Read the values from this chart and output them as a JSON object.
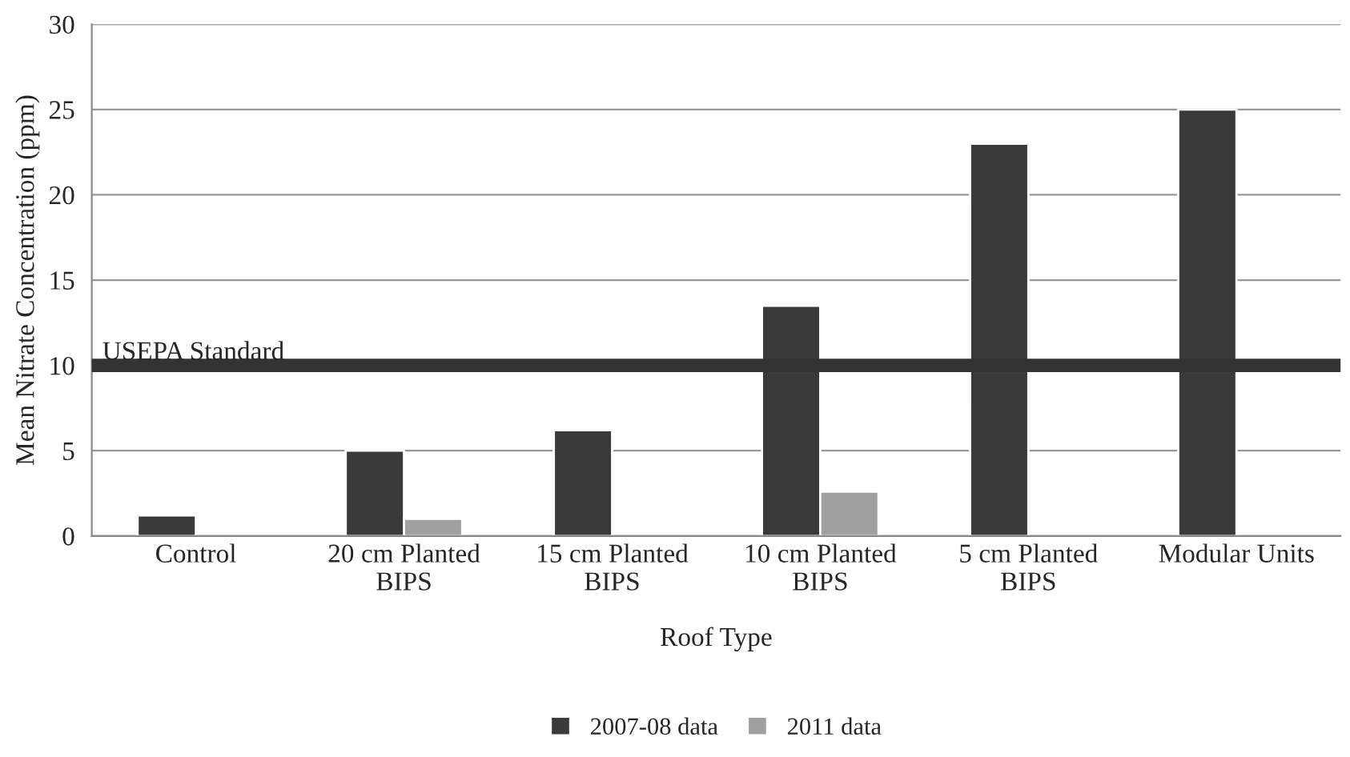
{
  "chart_data": {
    "type": "bar",
    "xlabel": "Roof Type",
    "ylabel": "Mean Nitrate Concentration (ppm)",
    "categories": [
      "Control",
      "20 cm Planted\nBIPS",
      "15 cm Planted\nBIPS",
      "10 cm Planted\nBIPS",
      "5 cm Planted\nBIPS",
      "Modular Units"
    ],
    "series": [
      {
        "name": "2007-08 data",
        "color": "#3a3a3a",
        "values": [
          1.2,
          5.0,
          6.2,
          13.5,
          23.0,
          25.0
        ]
      },
      {
        "name": "2011 data",
        "color": "#a0a0a0",
        "values": [
          null,
          1.0,
          null,
          2.6,
          null,
          null
        ]
      }
    ],
    "ylim": [
      0,
      30
    ],
    "yticks": [
      0,
      5,
      10,
      15,
      20,
      25,
      30
    ],
    "grid": "y",
    "legend": "bottom",
    "ref_lines": [
      {
        "axis": "y",
        "value": 10,
        "label": "USEPA Standard",
        "color": "#333333"
      }
    ]
  }
}
